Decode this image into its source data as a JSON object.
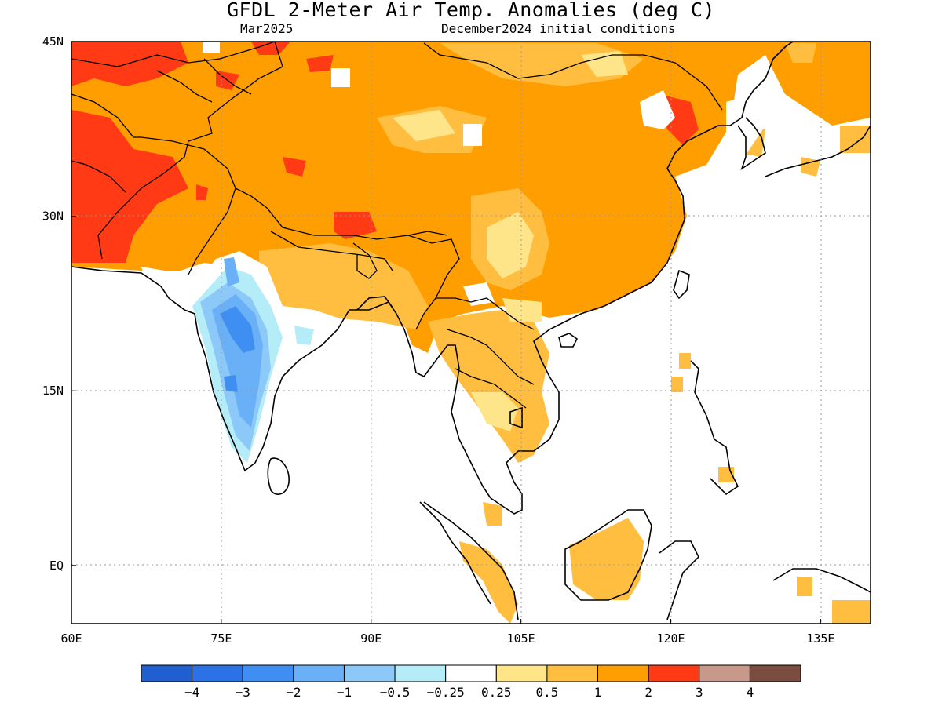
{
  "title": "GFDL 2-Meter Air Temp. Anomalies (deg C)",
  "valid_month": "Mar2025",
  "init_conditions": "December2024 initial conditions",
  "map": {
    "lon_range": [
      60,
      140
    ],
    "lat_range": [
      -5,
      45
    ],
    "lon_ticks": [
      {
        "value": 60,
        "label": "60E"
      },
      {
        "value": 75,
        "label": "75E"
      },
      {
        "value": 90,
        "label": "90E"
      },
      {
        "value": 105,
        "label": "105E"
      },
      {
        "value": 120,
        "label": "120E"
      },
      {
        "value": 135,
        "label": "135E"
      }
    ],
    "lat_ticks": [
      {
        "value": 45,
        "label": "45N"
      },
      {
        "value": 30,
        "label": "30N"
      },
      {
        "value": 15,
        "label": "15N"
      },
      {
        "value": 0,
        "label": "EQ"
      }
    ],
    "grid": "dotted"
  },
  "colorbar": {
    "colors": [
      "#1f5fd0",
      "#2a72e6",
      "#3f8ff2",
      "#6ab0f6",
      "#8dc9f8",
      "#b4ecf8",
      "#ffffff",
      "#ffe58a",
      "#ffbe40",
      "#ff9e00",
      "#ff3a14",
      "#c8998a",
      "#7a4d40"
    ],
    "labels": [
      "-4",
      "-3",
      "-2",
      "-1",
      "-0.5",
      "-0.25",
      "0.25",
      "0.5",
      "1",
      "2",
      "3",
      "4"
    ]
  },
  "anomaly_regions": [
    {
      "level": "2",
      "description": "Tibetan Plateau, China, Mongolia, North Korea"
    },
    {
      "level": "3",
      "description": "Iran, Afghanistan, Pakistan"
    },
    {
      "level": "-2",
      "description": "Central and southern India"
    },
    {
      "level": "1",
      "description": "Indochina, Borneo, Sumatra"
    }
  ]
}
